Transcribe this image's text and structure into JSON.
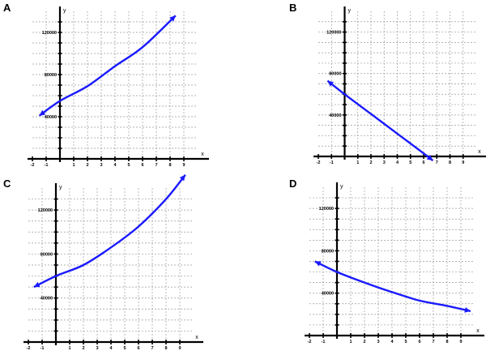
{
  "chart_data": [
    {
      "panel": "A",
      "type": "line",
      "function": "linear",
      "xlabel": "x",
      "ylabel": "y",
      "xlim": [
        -2,
        10
      ],
      "ylim": [
        0,
        140000
      ],
      "x_ticks": [
        "-2",
        "-1",
        "1",
        "2",
        "3",
        "4",
        "5",
        "6",
        "7",
        "8",
        "9"
      ],
      "y_ticks": [
        {
          "value": 40000,
          "label": "40000"
        },
        {
          "value": 80000,
          "label": "80000"
        },
        {
          "value": 120000,
          "label": "120000"
        }
      ],
      "points": [
        [
          -1.5,
          41000
        ],
        [
          0,
          55000
        ],
        [
          2,
          69000
        ],
        [
          4,
          88000
        ],
        [
          6,
          106000
        ],
        [
          8.4,
          136000
        ]
      ],
      "grid": true
    },
    {
      "panel": "B",
      "type": "line",
      "function": "linear",
      "xlabel": "x",
      "ylabel": "y",
      "xlim": [
        -2,
        10
      ],
      "ylim": [
        0,
        140000
      ],
      "x_ticks": [
        "-2",
        "-1",
        "1",
        "2",
        "3",
        "4",
        "5",
        "6",
        "7",
        "8",
        "9"
      ],
      "y_ticks": [
        {
          "value": 40000,
          "label": "40000"
        },
        {
          "value": 80000,
          "label": "80000"
        },
        {
          "value": 120000,
          "label": "120000"
        }
      ],
      "points": [
        [
          -1.3,
          73000
        ],
        [
          0,
          60000
        ],
        [
          2,
          41000
        ],
        [
          4,
          22000
        ],
        [
          6,
          3000
        ],
        [
          6.7,
          -4000
        ]
      ],
      "grid": true
    },
    {
      "panel": "C",
      "type": "line",
      "function": "exponential",
      "xlabel": "x",
      "ylabel": "y",
      "xlim": [
        -2,
        10
      ],
      "ylim": [
        0,
        140000
      ],
      "x_ticks": [
        "-2",
        "-1",
        "1",
        "2",
        "3",
        "4",
        "5",
        "6",
        "7",
        "8",
        "9"
      ],
      "y_ticks": [
        {
          "value": 40000,
          "label": "40000"
        },
        {
          "value": 80000,
          "label": "80000"
        },
        {
          "value": 120000,
          "label": "120000"
        }
      ],
      "points": [
        [
          -1.6,
          50000
        ],
        [
          0,
          60000
        ],
        [
          2,
          70000
        ],
        [
          4,
          86000
        ],
        [
          6,
          105000
        ],
        [
          8,
          130000
        ],
        [
          9.4,
          152000
        ]
      ],
      "grid": true
    },
    {
      "panel": "D",
      "type": "line",
      "function": "exponential-decay",
      "xlabel": "x",
      "ylabel": "y",
      "xlim": [
        -2,
        10
      ],
      "ylim": [
        0,
        140000
      ],
      "x_ticks": [
        "-2",
        "-1",
        "1",
        "2",
        "3",
        "4",
        "5",
        "6",
        "7",
        "8",
        "9"
      ],
      "y_ticks": [
        {
          "value": 40000,
          "label": "40000"
        },
        {
          "value": 80000,
          "label": "80000"
        },
        {
          "value": 120000,
          "label": "120000"
        }
      ],
      "points": [
        [
          -1.6,
          70000
        ],
        [
          0,
          60000
        ],
        [
          2,
          50000
        ],
        [
          4,
          41000
        ],
        [
          6,
          33000
        ],
        [
          8,
          28000
        ],
        [
          9.7,
          23000
        ]
      ],
      "grid": true
    }
  ],
  "colors": {
    "curve": "#1a1aff",
    "grid": "#9a9a9a",
    "axis": "#000000"
  }
}
